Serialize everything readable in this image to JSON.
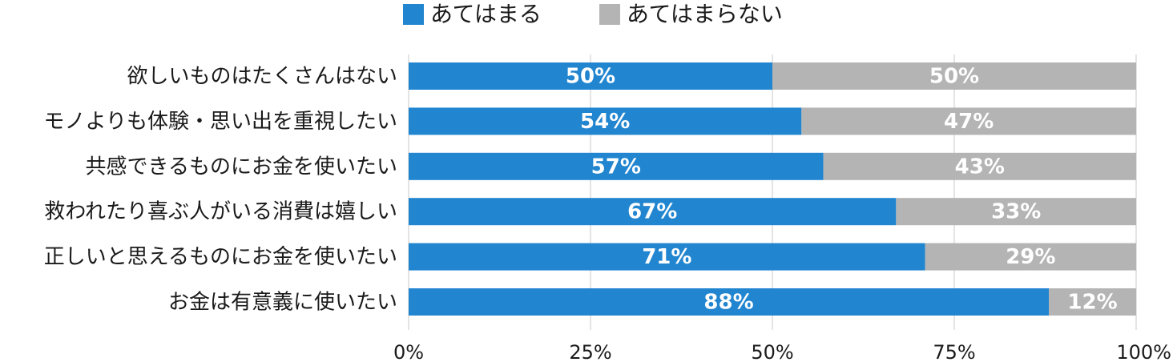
{
  "chart_data": {
    "type": "bar",
    "orientation": "horizontal",
    "stacked": true,
    "categories": [
      "欲しいものはたくさんはない",
      "モノよりも体験・思い出を重視したい",
      "共感できるものにお金を使いたい",
      "救われたり喜ぶ人がいる消費は嬉しい",
      "正しいと思えるものにお金を使いたい",
      "お金は有意義に使いたい"
    ],
    "series": [
      {
        "name": "あてはまる",
        "color": "#2185d0",
        "values": [
          50,
          54,
          57,
          67,
          71,
          88
        ],
        "labels": [
          "50%",
          "54%",
          "57%",
          "67%",
          "71%",
          "88%"
        ]
      },
      {
        "name": "あてはまらない",
        "color": "#b4b4b4",
        "values": [
          50,
          47,
          43,
          33,
          29,
          12
        ],
        "labels": [
          "50%",
          "47%",
          "43%",
          "33%",
          "29%",
          "12%"
        ]
      }
    ],
    "xlim": [
      0,
      100
    ],
    "xticks": [
      0,
      25,
      50,
      75,
      100
    ],
    "xtick_labels": [
      "0%",
      "25%",
      "50%",
      "75%",
      "100%"
    ],
    "grid": true,
    "legend": "top-center"
  }
}
